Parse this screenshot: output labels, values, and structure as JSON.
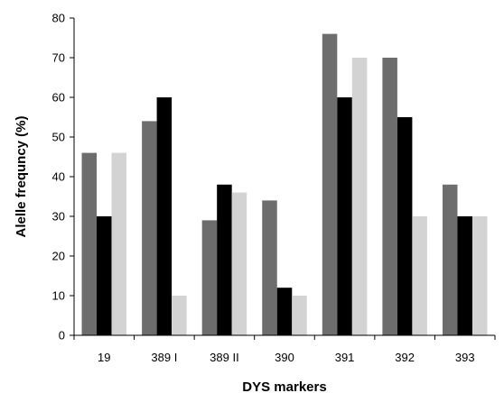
{
  "chart_data": {
    "type": "bar",
    "title": "",
    "xlabel": "DYS markers",
    "ylabel": "Alelle frequncy (%)",
    "categories": [
      "19",
      "389 I",
      "389 II",
      "390",
      "391",
      "392",
      "393"
    ],
    "series": [
      {
        "color": "#6d6d6d",
        "values": [
          46,
          54,
          29,
          34,
          76,
          70,
          38
        ]
      },
      {
        "color": "#000000",
        "values": [
          30,
          60,
          38,
          12,
          60,
          55,
          30
        ]
      },
      {
        "color": "#d3d3d3",
        "values": [
          46,
          10,
          36,
          10,
          70,
          30,
          30
        ]
      }
    ],
    "ylim": [
      0,
      80
    ],
    "yticks": [
      "0",
      "10",
      "20",
      "30",
      "40",
      "50",
      "60",
      "70",
      "80"
    ],
    "grid": false,
    "legend": "none"
  }
}
